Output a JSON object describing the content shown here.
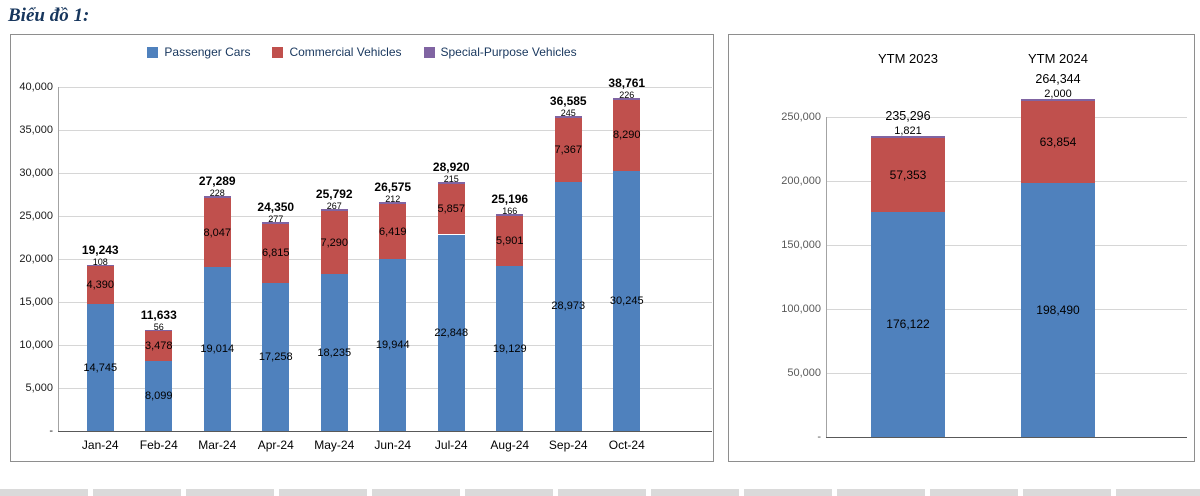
{
  "page": {
    "title": "Biểu đồ 1:"
  },
  "legend": [
    {
      "label": "Passenger Cars",
      "color": "#4F81BD"
    },
    {
      "label": "Commercial Vehicles",
      "color": "#C0504D"
    },
    {
      "label": "Special-Purpose Vehicles",
      "color": "#8064A2"
    }
  ],
  "chart_data": [
    {
      "id": "monthly",
      "type": "bar",
      "stacked": true,
      "categories": [
        "Jan-24",
        "Feb-24",
        "Mar-24",
        "Apr-24",
        "May-24",
        "Jun-24",
        "Jul-24",
        "Aug-24",
        "Sep-24",
        "Oct-24"
      ],
      "series": [
        {
          "name": "Passenger Cars",
          "color": "#4F81BD",
          "values": [
            14745,
            8099,
            19014,
            17258,
            18235,
            19944,
            22848,
            19129,
            28973,
            30245
          ]
        },
        {
          "name": "Commercial Vehicles",
          "color": "#C0504D",
          "values": [
            4390,
            3478,
            8047,
            6815,
            7290,
            6419,
            5857,
            5901,
            7367,
            8290
          ]
        },
        {
          "name": "Special-Purpose Vehicles",
          "color": "#8064A2",
          "values": [
            108,
            56,
            228,
            277,
            267,
            212,
            215,
            166,
            245,
            226
          ]
        }
      ],
      "totals": [
        19243,
        11633,
        27289,
        24350,
        25792,
        26575,
        28920,
        25196,
        36585,
        38761
      ],
      "ylim": [
        0,
        40000
      ],
      "ytick_step": 5000,
      "ytick_labels": [
        "-",
        "5,000",
        "10,000",
        "15,000",
        "20,000",
        "25,000",
        "30,000",
        "35,000",
        "40,000"
      ],
      "grid": true,
      "legend_position": "top",
      "category_label_position": "bottom"
    },
    {
      "id": "ytm",
      "type": "bar",
      "stacked": true,
      "categories": [
        "YTM 2023",
        "YTM 2024"
      ],
      "series": [
        {
          "name": "Passenger Cars",
          "color": "#4F81BD",
          "values": [
            176122,
            198490
          ]
        },
        {
          "name": "Commercial Vehicles",
          "color": "#C0504D",
          "values": [
            57353,
            63854
          ]
        },
        {
          "name": "Special-Purpose Vehicles",
          "color": "#8064A2",
          "values": [
            1821,
            2000
          ]
        }
      ],
      "totals": [
        235296,
        264344
      ],
      "ylim": [
        0,
        270000
      ],
      "ytick_step": 50000,
      "ytick_labels": [
        "-",
        "50,000",
        "100,000",
        "150,000",
        "200,000",
        "250,000"
      ],
      "grid": true,
      "legend_position": "none",
      "category_label_position": "top"
    }
  ]
}
